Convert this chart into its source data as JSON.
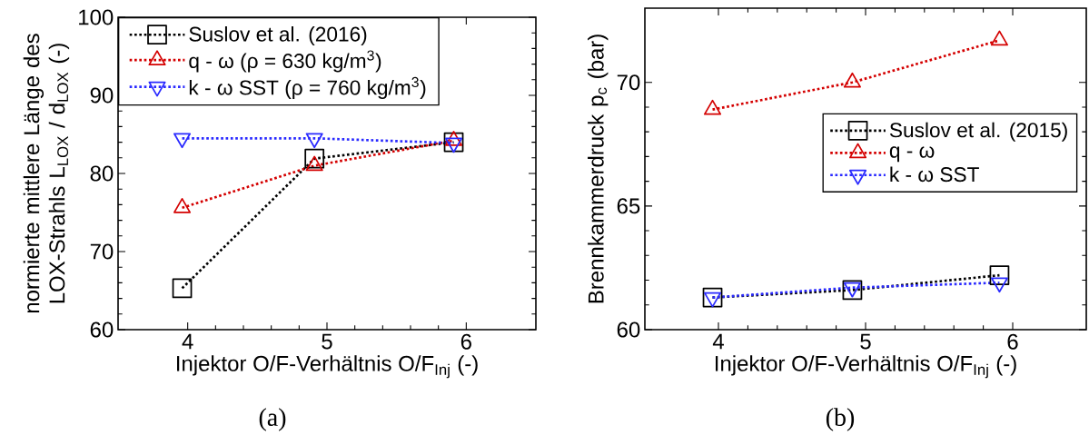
{
  "chart_data": [
    {
      "type": "line",
      "xlabel": "Injektor O/F-Verhältnis O/F$_{Inj}$ (-)",
      "ylabel": "normierte mittlere Länge des LOX-Strahls L$_{LOX}$ / d$_{LOX}$ (-)",
      "xlim": [
        3.5,
        6.5
      ],
      "ylim": [
        60,
        100
      ],
      "xticks": [
        4,
        5,
        6
      ],
      "yticks": [
        60,
        70,
        80,
        90,
        100
      ],
      "legend": "top",
      "line_style": "dotted",
      "grid": false,
      "annotations": [
        "(a)"
      ],
      "series": [
        {
          "name": "Suslov et al. (2016)",
          "color": "#000000",
          "marker": "square",
          "x": [
            3.96,
            4.91,
            5.91
          ],
          "values": [
            65.3,
            81.9,
            84.0
          ]
        },
        {
          "name": "q - ω (ρ = 630 kg/m$^{3}$)",
          "color": "#d40000",
          "marker": "triangle",
          "x": [
            3.96,
            4.91,
            5.91
          ],
          "values": [
            75.6,
            81.0,
            84.2
          ]
        },
        {
          "name": "k - ω SST (ρ = 760 kg/m$^{3}$)",
          "color": "#2a2aff",
          "marker": "triangle_down",
          "x": [
            3.96,
            4.91,
            5.91
          ],
          "values": [
            84.5,
            84.5,
            83.9
          ]
        }
      ]
    },
    {
      "type": "line",
      "xlabel": "Injektor O/F-Verhältnis O/F$_{Inj}$ (-)",
      "ylabel": "Brennkammerdruck p$_{c}$ (bar)",
      "xlim": [
        3.5,
        6.5
      ],
      "ylim": [
        60,
        73
      ],
      "xticks": [
        4,
        5,
        6
      ],
      "yticks": [
        60,
        65,
        70
      ],
      "legend": "right",
      "line_style": "dotted",
      "grid": false,
      "annotations": [
        "(b)"
      ],
      "series": [
        {
          "name": "Suslov et al. (2015)",
          "color": "#000000",
          "marker": "square",
          "x": [
            3.96,
            4.91,
            5.91
          ],
          "values": [
            61.3,
            61.6,
            62.2
          ]
        },
        {
          "name": "q - ω",
          "color": "#d40000",
          "marker": "triangle",
          "x": [
            3.96,
            4.91,
            5.91
          ],
          "values": [
            68.9,
            70.0,
            71.7
          ]
        },
        {
          "name": "k - ω SST",
          "color": "#2a2aff",
          "marker": "triangle_down",
          "x": [
            3.96,
            4.91,
            5.91
          ],
          "values": [
            61.3,
            61.7,
            61.9
          ]
        }
      ]
    }
  ]
}
